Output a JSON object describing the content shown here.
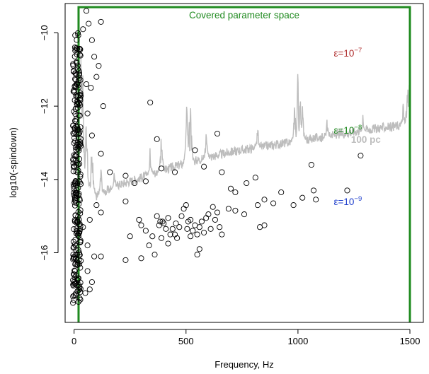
{
  "chart_data": {
    "type": "scatter",
    "xlabel": "Frequency, Hz",
    "ylabel": "log10(-spindown)",
    "xlim": [
      -40,
      1560
    ],
    "ylim": [
      -17.9,
      -9.2
    ],
    "x_ticks": [
      0,
      500,
      1000,
      1500
    ],
    "y_ticks": [
      -10,
      -12,
      -14,
      -16
    ],
    "x_tick_labels": [
      "0",
      "500",
      "1000",
      "1500"
    ],
    "y_tick_labels": [
      "−10",
      "−12",
      "−14",
      "−16"
    ],
    "grid": false,
    "covered_region": {
      "label": "Covered parameter space",
      "color": "#1f8a1f",
      "x_range": [
        20,
        1500
      ],
      "y_top": -9.3
    },
    "sensitivity_curve": {
      "label": "100 pc",
      "color": "#bdbdbd",
      "baseline": [
        [
          30,
          -12.6
        ],
        [
          50,
          -14.3
        ],
        [
          100,
          -14.5
        ],
        [
          150,
          -14.35
        ],
        [
          200,
          -14.2
        ],
        [
          300,
          -14.0
        ],
        [
          400,
          -13.8
        ],
        [
          500,
          -13.6
        ],
        [
          600,
          -13.45
        ],
        [
          700,
          -13.3
        ],
        [
          800,
          -13.2
        ],
        [
          900,
          -13.1
        ],
        [
          1000,
          -13.0
        ],
        [
          1100,
          -12.9
        ],
        [
          1200,
          -12.8
        ],
        [
          1300,
          -12.7
        ],
        [
          1400,
          -12.62
        ],
        [
          1500,
          -12.55
        ]
      ],
      "spikes": [
        [
          30,
          -10.3
        ],
        [
          40,
          -10.5
        ],
        [
          55,
          -11.3
        ],
        [
          80,
          -12.0
        ],
        [
          120,
          -13.5
        ],
        [
          180,
          -13.6
        ],
        [
          340,
          -12.9
        ],
        [
          390,
          -12.3
        ],
        [
          505,
          -10.4
        ],
        [
          512,
          -11.5
        ],
        [
          520,
          -11.4
        ],
        [
          590,
          -12.5
        ],
        [
          820,
          -12.4
        ],
        [
          985,
          -11.6
        ],
        [
          1000,
          -10.6
        ],
        [
          1010,
          -11.2
        ],
        [
          1020,
          -11.8
        ],
        [
          1130,
          -12.3
        ],
        [
          1290,
          -12.2
        ],
        [
          1470,
          -11.7
        ],
        [
          1490,
          -10.8
        ],
        [
          1500,
          -10.2
        ]
      ]
    },
    "ellipticity_curves": [
      {
        "label_base": "ε=10",
        "exponent": "−7",
        "eps": 1e-07,
        "color": "#b03030",
        "label_x": 1160,
        "label_y": -10.65
      },
      {
        "label_base": "ε=10",
        "exponent": "−8",
        "eps": 1e-08,
        "color": "#1f8a1f",
        "label_x": 1160,
        "label_y": -12.75
      },
      {
        "label_base": "ε=10",
        "exponent": "−9",
        "eps": 1e-09,
        "color": "#1f3fcc",
        "label_x": 1160,
        "label_y": -14.7
      }
    ],
    "pulsar_points": [
      [
        40,
        -9.9
      ],
      [
        55,
        -9.4
      ],
      [
        65,
        -9.75
      ],
      [
        80,
        -10.2
      ],
      [
        90,
        -10.65
      ],
      [
        120,
        -9.7
      ],
      [
        110,
        -10.9
      ],
      [
        55,
        -11.4
      ],
      [
        75,
        -11.5
      ],
      [
        100,
        -11.2
      ],
      [
        130,
        -12.0
      ],
      [
        60,
        -12.2
      ],
      [
        80,
        -12.8
      ],
      [
        120,
        -13.3
      ],
      [
        160,
        -13.8
      ],
      [
        100,
        -14.7
      ],
      [
        70,
        -15.1
      ],
      [
        120,
        -14.9
      ],
      [
        40,
        -15.3
      ],
      [
        60,
        -15.8
      ],
      [
        90,
        -16.1
      ],
      [
        120,
        -16.1
      ],
      [
        60,
        -16.5
      ],
      [
        80,
        -16.8
      ],
      [
        50,
        -17.1
      ],
      [
        70,
        -17.0
      ],
      [
        340,
        -11.9
      ],
      [
        370,
        -12.9
      ],
      [
        230,
        -13.9
      ],
      [
        270,
        -14.1
      ],
      [
        320,
        -14.05
      ],
      [
        390,
        -13.7
      ],
      [
        450,
        -13.8
      ],
      [
        540,
        -13.2
      ],
      [
        580,
        -13.65
      ],
      [
        640,
        -12.75
      ],
      [
        660,
        -13.8
      ],
      [
        700,
        -14.25
      ],
      [
        720,
        -14.35
      ],
      [
        770,
        -14.1
      ],
      [
        810,
        -13.95
      ],
      [
        850,
        -14.55
      ],
      [
        925,
        -14.35
      ],
      [
        980,
        -14.7
      ],
      [
        1060,
        -13.6
      ],
      [
        1070,
        -14.3
      ],
      [
        1080,
        -14.55
      ],
      [
        1220,
        -14.3
      ],
      [
        1280,
        -13.35
      ],
      [
        230,
        -14.6
      ],
      [
        250,
        -15.55
      ],
      [
        290,
        -15.1
      ],
      [
        300,
        -15.25
      ],
      [
        320,
        -15.4
      ],
      [
        335,
        -15.8
      ],
      [
        350,
        -15.55
      ],
      [
        370,
        -15.0
      ],
      [
        380,
        -15.25
      ],
      [
        385,
        -15.15
      ],
      [
        390,
        -15.6
      ],
      [
        395,
        -15.15
      ],
      [
        400,
        -15.2
      ],
      [
        410,
        -15.35
      ],
      [
        420,
        -15.75
      ],
      [
        430,
        -15.5
      ],
      [
        440,
        -15.35
      ],
      [
        450,
        -15.5
      ],
      [
        460,
        -15.6
      ],
      [
        470,
        -15.3
      ],
      [
        480,
        -15.0
      ],
      [
        490,
        -14.8
      ],
      [
        500,
        -14.7
      ],
      [
        510,
        -15.15
      ],
      [
        520,
        -15.1
      ],
      [
        530,
        -15.4
      ],
      [
        540,
        -15.25
      ],
      [
        550,
        -15.5
      ],
      [
        560,
        -15.3
      ],
      [
        570,
        -15.15
      ],
      [
        580,
        -15.45
      ],
      [
        600,
        -14.95
      ],
      [
        620,
        -14.75
      ],
      [
        630,
        -15.1
      ],
      [
        650,
        -15.3
      ],
      [
        660,
        -15.5
      ],
      [
        690,
        -14.8
      ],
      [
        720,
        -14.85
      ],
      [
        760,
        -14.95
      ],
      [
        820,
        -14.7
      ],
      [
        830,
        -15.3
      ],
      [
        850,
        -15.25
      ],
      [
        890,
        -14.65
      ],
      [
        1020,
        -14.5
      ],
      [
        230,
        -16.2
      ],
      [
        300,
        -16.15
      ],
      [
        360,
        -16.05
      ],
      [
        550,
        -16.05
      ],
      [
        560,
        -15.9
      ],
      [
        420,
        -15.05
      ],
      [
        455,
        -15.2
      ],
      [
        520,
        -15.55
      ],
      [
        590,
        -15.05
      ],
      [
        610,
        -15.35
      ],
      [
        640,
        -14.9
      ],
      [
        505,
        -15.35
      ]
    ],
    "dense_cluster": {
      "x_range": [
        -5,
        30
      ],
      "y_range": [
        -17.4,
        -10.0
      ],
      "count": 260
    }
  }
}
